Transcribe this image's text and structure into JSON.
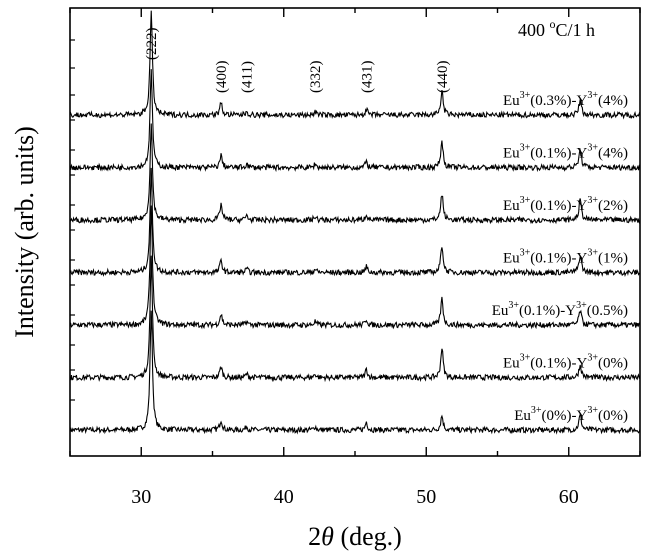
{
  "chart_data": {
    "type": "line",
    "title": "",
    "annotation": "400 °C/1 h",
    "annotation_parts": {
      "value": "400 ",
      "sup": "o",
      "unit": "C/1 h"
    },
    "xlabel": "2θ (deg.)",
    "xlabel_parts": {
      "pre": "2",
      "theta": "θ",
      "post": " (deg.)"
    },
    "ylabel": "Intensity (arb. units)",
    "xlim": [
      25,
      65
    ],
    "x_ticks": [
      30,
      40,
      50,
      60
    ],
    "y_ticks": "none",
    "grid": false,
    "legend": "none",
    "peaks": [
      {
        "label": "(222)",
        "x": 30.7
      },
      {
        "label": "(400)",
        "x": 35.6
      },
      {
        "label": "(411)",
        "x": 37.4
      },
      {
        "label": "(332)",
        "x": 42.2
      },
      {
        "label": "(431)",
        "x": 45.8
      },
      {
        "label": "(440)",
        "x": 51.1
      }
    ],
    "series_order": "bottom-to-top",
    "series": [
      {
        "name": "Eu3+(0%)-Y3+(0%)",
        "eu": "(0%)",
        "y": "(0%)",
        "offset": 0,
        "peak_heights": [
          1.0,
          0.085,
          0.03,
          0.03,
          0.07,
          0.12,
          0.12
        ]
      },
      {
        "name": "Eu3+(0.1%)-Y3+(0%)",
        "eu": "(0.1%)",
        "y": "(0%)",
        "offset": 1,
        "peak_heights": [
          1.0,
          0.09,
          0.03,
          0.03,
          0.07,
          0.25,
          0.1
        ]
      },
      {
        "name": "Eu3+(0.1%)-Y3+(0.5%)",
        "eu": "(0.1%)",
        "y": "(0.5%)",
        "offset": 2,
        "peak_heights": [
          1.0,
          0.09,
          0.03,
          0.03,
          0.05,
          0.22,
          0.12
        ]
      },
      {
        "name": "Eu3+(0.1%)-Y3+(1%)",
        "eu": "(0.1%)",
        "y": "(1%)",
        "offset": 3,
        "peak_heights": [
          0.85,
          0.1,
          0.03,
          0.03,
          0.05,
          0.23,
          0.14
        ]
      },
      {
        "name": "Eu3+(0.1%)-Y3+(2%)",
        "eu": "(0.1%)",
        "y": "(2%)",
        "offset": 4,
        "peak_heights": [
          0.8,
          0.13,
          0.04,
          0.03,
          0.05,
          0.22,
          0.16
        ]
      },
      {
        "name": "Eu3+(0.1%)-Y3+(4%)",
        "eu": "(0.1%)",
        "y": "(4%)",
        "offset": 5,
        "peak_heights": [
          0.8,
          0.1,
          0.03,
          0.03,
          0.05,
          0.22,
          0.14
        ]
      },
      {
        "name": "Eu3+(0.3%)-Y3+(4%)",
        "eu": "(0.3%)",
        "y": "(4%)",
        "offset": 6,
        "peak_heights": [
          0.85,
          0.1,
          0.03,
          0.03,
          0.05,
          0.2,
          0.12
        ]
      }
    ],
    "peak_positions": [
      30.7,
      35.6,
      37.4,
      42.2,
      45.8,
      51.1,
      60.8
    ]
  }
}
